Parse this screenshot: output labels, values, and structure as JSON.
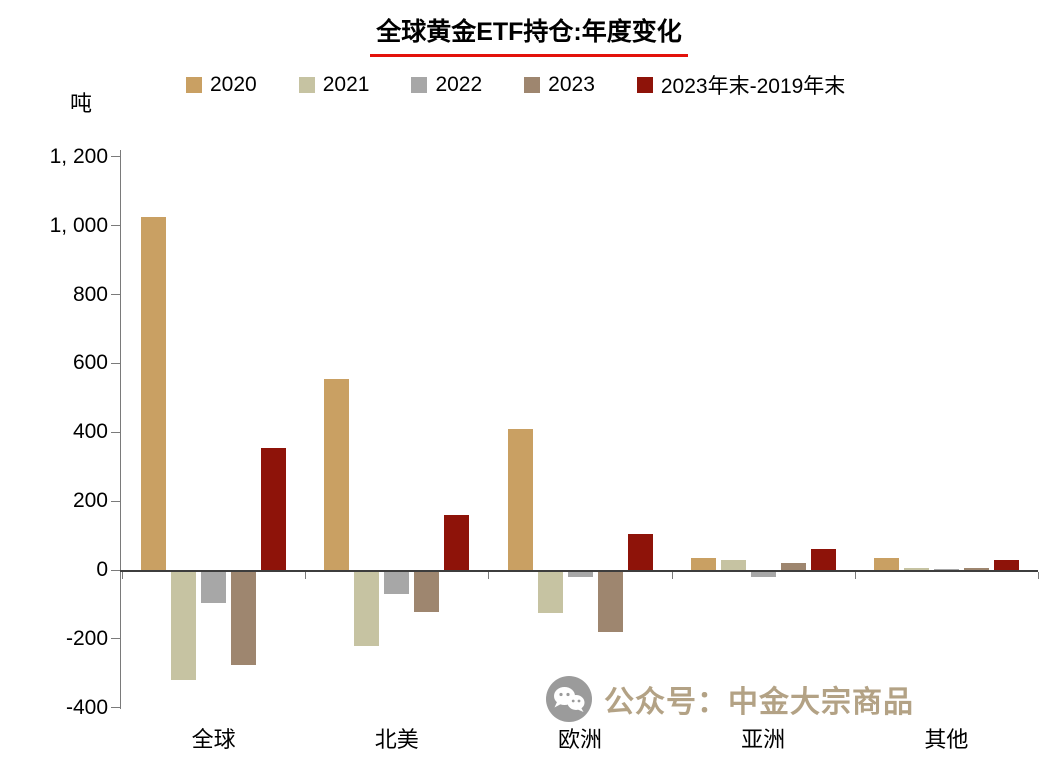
{
  "title": "全球黄金ETF持仓:年度变化",
  "unit_label": "吨",
  "watermark": {
    "text": "公众号：中金大宗商品",
    "icon": "wechat-icon"
  },
  "colors": {
    "title_underline": "#E3120B",
    "watermark_text": "#B3A285",
    "watermark_icon": "#9B9B9B",
    "axis": "#7A7A7A"
  },
  "chart_data": {
    "type": "bar",
    "title": "全球黄金ETF持仓:年度变化",
    "xlabel": "",
    "ylabel": "吨",
    "categories": [
      "全球",
      "北美",
      "欧洲",
      "亚洲",
      "其他"
    ],
    "series": [
      {
        "name": "2020",
        "color": "#C9A063",
        "values": [
          1025,
          555,
          410,
          35,
          35
        ]
      },
      {
        "name": "2021",
        "color": "#C6C3A2",
        "values": [
          -315,
          -215,
          -120,
          30,
          5
        ]
      },
      {
        "name": "2022",
        "color": "#A7A7A7",
        "values": [
          -90,
          -65,
          -15,
          -15,
          3
        ]
      },
      {
        "name": "2023",
        "color": "#9E866F",
        "values": [
          -270,
          -115,
          -175,
          20,
          5
        ]
      },
      {
        "name": "2023年末-2019年末",
        "color": "#8E1309",
        "values": [
          355,
          160,
          105,
          60,
          30
        ]
      }
    ],
    "ylim": [
      -400,
      1200
    ],
    "ytick_step": 200,
    "ytick_labels": [
      "-400",
      "-200",
      "0",
      "200",
      "400",
      "600",
      "800",
      "1, 000",
      "1, 200"
    ],
    "grid": false,
    "legend_position": "top"
  }
}
